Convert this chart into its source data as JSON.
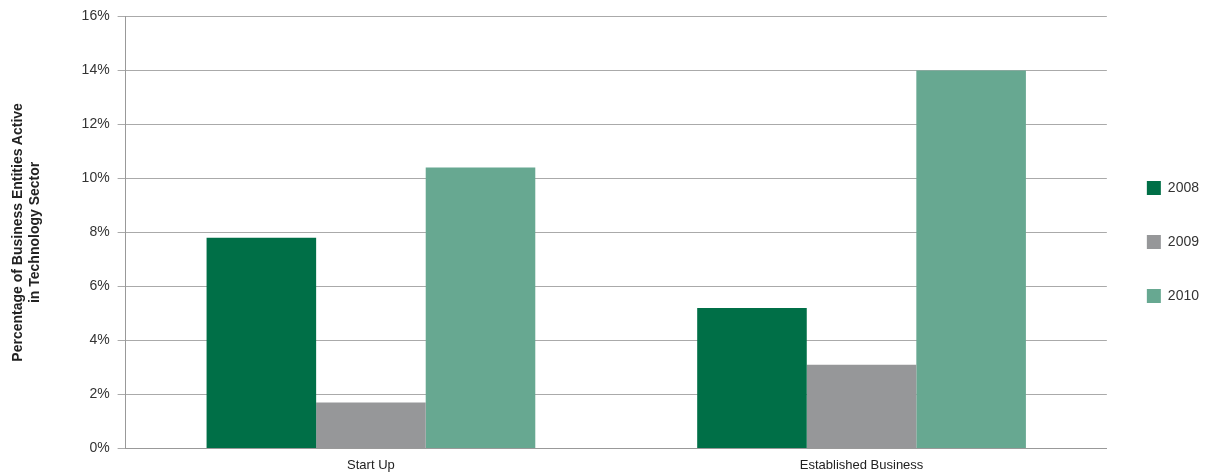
{
  "chart_data": {
    "type": "bar",
    "ylabel": "Percentage of Business Entities Active\nin Technology Sector",
    "categories": [
      "Start Up",
      "Established Business"
    ],
    "series": [
      {
        "name": "2008",
        "color": "#006f47",
        "values": [
          7.8,
          5.2
        ]
      },
      {
        "name": "2009",
        "color": "#969799",
        "values": [
          1.7,
          3.1
        ]
      },
      {
        "name": "2010",
        "color": "#67a891",
        "values": [
          10.4,
          14
        ]
      }
    ],
    "ylim": [
      0,
      16
    ],
    "yticks": [
      {
        "value": 0,
        "label": "0%"
      },
      {
        "value": 2,
        "label": "2%"
      },
      {
        "value": 4,
        "label": "4%"
      },
      {
        "value": 6,
        "label": "6%"
      },
      {
        "value": 8,
        "label": "8%"
      },
      {
        "value": 10,
        "label": "10%"
      },
      {
        "value": 12,
        "label": "12%"
      },
      {
        "value": 14,
        "label": "14%"
      },
      {
        "value": 16,
        "label": "16%"
      }
    ],
    "grid": "y",
    "legend": "right"
  }
}
